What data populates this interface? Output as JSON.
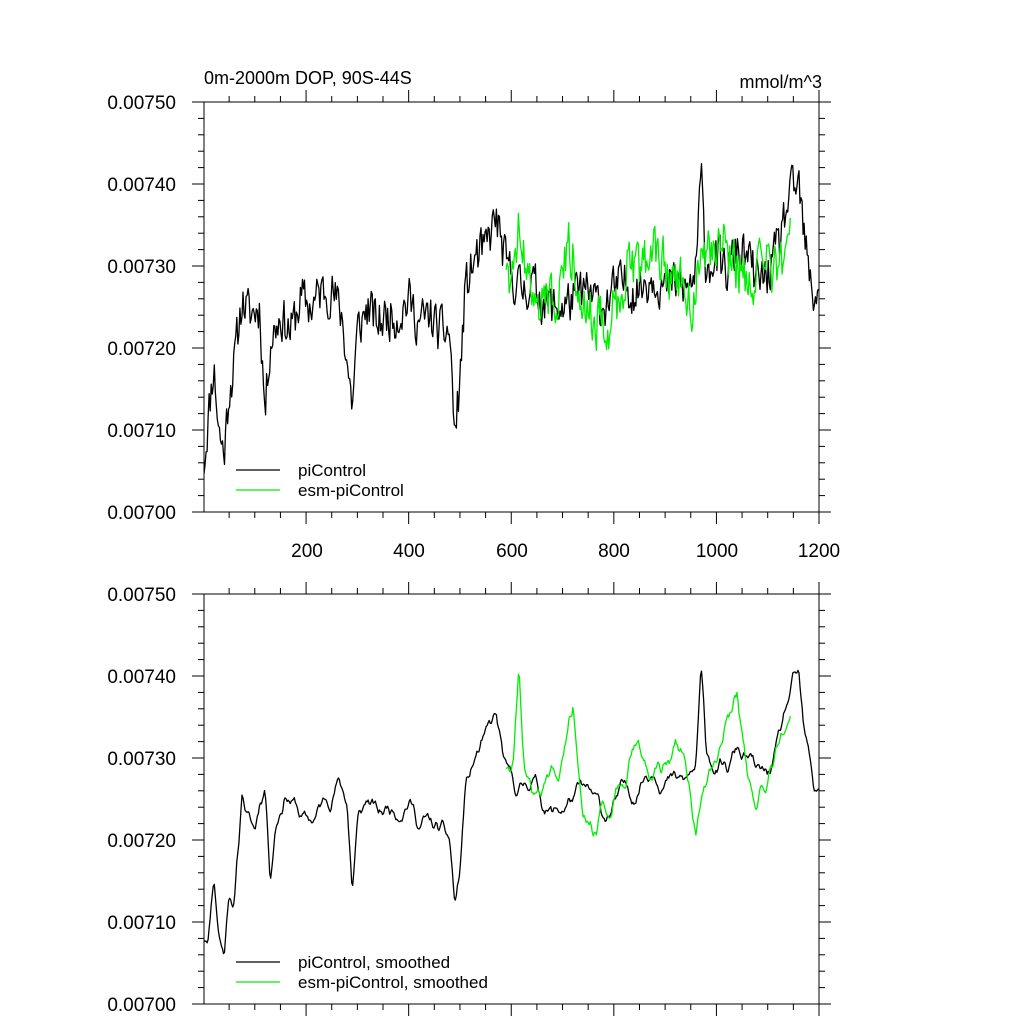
{
  "chart_data": [
    {
      "type": "line",
      "title": "0m-2000m DOP, 90S-44S",
      "units_label": "mmol/m^3",
      "xlim": [
        1,
        1200
      ],
      "ylim": [
        0.007,
        0.0075
      ],
      "x_ticks": [
        200,
        400,
        600,
        800,
        1000,
        1200
      ],
      "x_tick_labels": [
        "200",
        "400",
        "600",
        "800",
        "1000",
        "1200"
      ],
      "y_ticks": [
        0.007,
        0.0071,
        0.0072,
        0.0073,
        0.0074,
        0.0075
      ],
      "y_tick_labels": [
        "0.00700",
        "0.00710",
        "0.00720",
        "0.00730",
        "0.00740",
        "0.00750"
      ],
      "legend_position": "bottom-left",
      "series": [
        {
          "name": "piControl",
          "color": "#000000",
          "x_range": [
            1,
            1200
          ],
          "anchors": [
            [
              1,
              0.00706
            ],
            [
              10,
              0.00712
            ],
            [
              20,
              0.00718
            ],
            [
              30,
              0.0071
            ],
            [
              40,
              0.00707
            ],
            [
              50,
              0.00715
            ],
            [
              60,
              0.00718
            ],
            [
              75,
              0.00726
            ],
            [
              90,
              0.00724
            ],
            [
              110,
              0.00725
            ],
            [
              120,
              0.00712
            ],
            [
              130,
              0.00721
            ],
            [
              150,
              0.00724
            ],
            [
              170,
              0.00722
            ],
            [
              190,
              0.00726
            ],
            [
              210,
              0.00725
            ],
            [
              230,
              0.00727
            ],
            [
              250,
              0.00727
            ],
            [
              270,
              0.00724
            ],
            [
              290,
              0.00713
            ],
            [
              300,
              0.00722
            ],
            [
              320,
              0.00725
            ],
            [
              340,
              0.00723
            ],
            [
              360,
              0.00724
            ],
            [
              380,
              0.00724
            ],
            [
              400,
              0.00726
            ],
            [
              420,
              0.00723
            ],
            [
              440,
              0.00724
            ],
            [
              460,
              0.00722
            ],
            [
              480,
              0.00722
            ],
            [
              490,
              0.00709
            ],
            [
              500,
              0.00716
            ],
            [
              510,
              0.00727
            ],
            [
              530,
              0.00731
            ],
            [
              550,
              0.00732
            ],
            [
              570,
              0.00736
            ],
            [
              590,
              0.0073
            ],
            [
              600,
              0.00729
            ],
            [
              620,
              0.00727
            ],
            [
              640,
              0.00728
            ],
            [
              660,
              0.00726
            ],
            [
              680,
              0.00725
            ],
            [
              700,
              0.00725
            ],
            [
              720,
              0.00726
            ],
            [
              740,
              0.00727
            ],
            [
              760,
              0.00726
            ],
            [
              780,
              0.00725
            ],
            [
              800,
              0.00727
            ],
            [
              820,
              0.00728
            ],
            [
              840,
              0.00727
            ],
            [
              860,
              0.00728
            ],
            [
              880,
              0.00729
            ],
            [
              900,
              0.00727
            ],
            [
              920,
              0.00728
            ],
            [
              940,
              0.00727
            ],
            [
              960,
              0.00729
            ],
            [
              970,
              0.00741
            ],
            [
              980,
              0.0073
            ],
            [
              1000,
              0.00731
            ],
            [
              1020,
              0.00729
            ],
            [
              1040,
              0.00732
            ],
            [
              1060,
              0.00731
            ],
            [
              1080,
              0.00728
            ],
            [
              1100,
              0.00729
            ],
            [
              1120,
              0.00732
            ],
            [
              1140,
              0.00738
            ],
            [
              1160,
              0.0074
            ],
            [
              1170,
              0.00734
            ],
            [
              1180,
              0.00729
            ],
            [
              1190,
              0.00726
            ],
            [
              1200,
              0.00728
            ]
          ],
          "noise_amplitude": 3.2e-05
        },
        {
          "name": "esm-piControl",
          "color": "#00ee00",
          "x_range": [
            590,
            1145
          ],
          "anchors": [
            [
              590,
              0.00731
            ],
            [
              605,
              0.00728
            ],
            [
              615,
              0.00736
            ],
            [
              630,
              0.00729
            ],
            [
              650,
              0.00726
            ],
            [
              670,
              0.00726
            ],
            [
              690,
              0.00727
            ],
            [
              710,
              0.00733
            ],
            [
              730,
              0.00729
            ],
            [
              750,
              0.00725
            ],
            [
              770,
              0.00723
            ],
            [
              790,
              0.00723
            ],
            [
              810,
              0.00726
            ],
            [
              830,
              0.00731
            ],
            [
              850,
              0.0073
            ],
            [
              870,
              0.00732
            ],
            [
              890,
              0.00731
            ],
            [
              910,
              0.00729
            ],
            [
              930,
              0.00728
            ],
            [
              950,
              0.00725
            ],
            [
              970,
              0.00729
            ],
            [
              990,
              0.00732
            ],
            [
              1010,
              0.00733
            ],
            [
              1030,
              0.00731
            ],
            [
              1050,
              0.00729
            ],
            [
              1070,
              0.00727
            ],
            [
              1090,
              0.00731
            ],
            [
              1110,
              0.00729
            ],
            [
              1130,
              0.00731
            ],
            [
              1145,
              0.00735
            ]
          ],
          "noise_amplitude": 3.7e-05
        }
      ]
    },
    {
      "type": "line",
      "title": "",
      "units_label": "",
      "xlim": [
        1,
        1200
      ],
      "ylim": [
        0.007,
        0.0075
      ],
      "x_ticks": [
        200,
        400,
        600,
        800,
        1000,
        1200
      ],
      "x_tick_labels": [],
      "y_ticks": [
        0.007,
        0.0071,
        0.0072,
        0.0073,
        0.0074,
        0.0075
      ],
      "y_tick_labels": [
        "0.00700",
        "0.00710",
        "0.00720",
        "0.00730",
        "0.00740",
        "0.00750"
      ],
      "legend_position": "bottom-left",
      "series": [
        {
          "name": "piControl, smoothed",
          "color": "#000000",
          "x_range": [
            1,
            1200
          ],
          "anchors": [
            [
              1,
              0.00708
            ],
            [
              10,
              0.00709
            ],
            [
              20,
              0.00716
            ],
            [
              30,
              0.00709
            ],
            [
              40,
              0.00706
            ],
            [
              50,
              0.00714
            ],
            [
              60,
              0.00713
            ],
            [
              70,
              0.0072
            ],
            [
              75,
              0.00726
            ],
            [
              90,
              0.00722
            ],
            [
              100,
              0.00721
            ],
            [
              110,
              0.00725
            ],
            [
              120,
              0.00727
            ],
            [
              130,
              0.00716
            ],
            [
              140,
              0.00722
            ],
            [
              160,
              0.00726
            ],
            [
              180,
              0.00724
            ],
            [
              200,
              0.00722
            ],
            [
              220,
              0.00723
            ],
            [
              240,
              0.00725
            ],
            [
              260,
              0.00727
            ],
            [
              280,
              0.00725
            ],
            [
              290,
              0.00714
            ],
            [
              300,
              0.00722
            ],
            [
              320,
              0.00725
            ],
            [
              340,
              0.00723
            ],
            [
              360,
              0.00724
            ],
            [
              380,
              0.00724
            ],
            [
              400,
              0.00725
            ],
            [
              420,
              0.00722
            ],
            [
              440,
              0.00722
            ],
            [
              460,
              0.00721
            ],
            [
              480,
              0.0072
            ],
            [
              490,
              0.00712
            ],
            [
              500,
              0.00716
            ],
            [
              510,
              0.00726
            ],
            [
              530,
              0.0073
            ],
            [
              550,
              0.00732
            ],
            [
              570,
              0.00735
            ],
            [
              590,
              0.00728
            ],
            [
              600,
              0.00727
            ],
            [
              620,
              0.00726
            ],
            [
              640,
              0.00728
            ],
            [
              660,
              0.00725
            ],
            [
              680,
              0.00723
            ],
            [
              700,
              0.00724
            ],
            [
              720,
              0.00725
            ],
            [
              740,
              0.00726
            ],
            [
              760,
              0.00725
            ],
            [
              780,
              0.00723
            ],
            [
              800,
              0.00724
            ],
            [
              820,
              0.00726
            ],
            [
              840,
              0.00726
            ],
            [
              860,
              0.00728
            ],
            [
              880,
              0.00729
            ],
            [
              900,
              0.00727
            ],
            [
              920,
              0.00727
            ],
            [
              940,
              0.00727
            ],
            [
              960,
              0.00729
            ],
            [
              970,
              0.0074
            ],
            [
              980,
              0.00731
            ],
            [
              1000,
              0.00729
            ],
            [
              1020,
              0.00728
            ],
            [
              1040,
              0.00731
            ],
            [
              1060,
              0.0073
            ],
            [
              1080,
              0.00728
            ],
            [
              1100,
              0.00728
            ],
            [
              1120,
              0.00731
            ],
            [
              1140,
              0.00737
            ],
            [
              1160,
              0.0074
            ],
            [
              1170,
              0.00733
            ],
            [
              1180,
              0.0073
            ],
            [
              1190,
              0.00726
            ],
            [
              1200,
              0.00727
            ]
          ],
          "noise_amplitude": 1.4e-05
        },
        {
          "name": "esm-piControl, smoothed",
          "color": "#00ee00",
          "x_range": [
            590,
            1145
          ],
          "anchors": [
            [
              590,
              0.00729
            ],
            [
              605,
              0.0073
            ],
            [
              615,
              0.00741
            ],
            [
              625,
              0.0073
            ],
            [
              640,
              0.00726
            ],
            [
              660,
              0.00727
            ],
            [
              680,
              0.00728
            ],
            [
              700,
              0.00731
            ],
            [
              720,
              0.00737
            ],
            [
              740,
              0.00726
            ],
            [
              760,
              0.00722
            ],
            [
              780,
              0.00724
            ],
            [
              800,
              0.00725
            ],
            [
              820,
              0.00728
            ],
            [
              840,
              0.00732
            ],
            [
              860,
              0.00729
            ],
            [
              880,
              0.00728
            ],
            [
              900,
              0.00729
            ],
            [
              920,
              0.00732
            ],
            [
              940,
              0.00729
            ],
            [
              960,
              0.00722
            ],
            [
              980,
              0.00725
            ],
            [
              1000,
              0.0073
            ],
            [
              1020,
              0.00734
            ],
            [
              1040,
              0.00738
            ],
            [
              1060,
              0.00728
            ],
            [
              1080,
              0.00724
            ],
            [
              1100,
              0.00726
            ],
            [
              1120,
              0.00731
            ],
            [
              1145,
              0.00735
            ]
          ],
          "noise_amplitude": 1.7e-05
        }
      ]
    }
  ]
}
